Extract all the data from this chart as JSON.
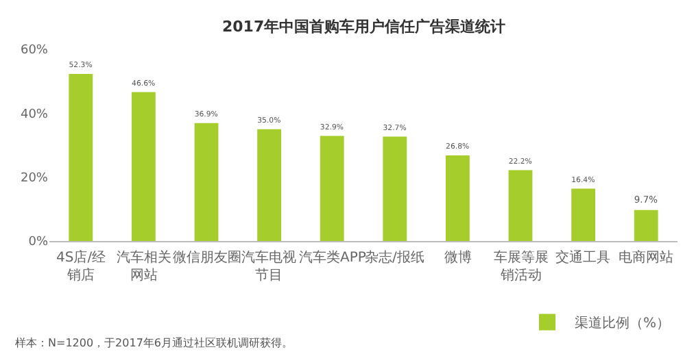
{
  "chart_data": {
    "type": "bar",
    "title": "2017年中国首购车用户信任广告渠道统计",
    "categories": [
      "4S店/经销店",
      "汽车相关网站",
      "微信朋友圈",
      "汽车电视节目",
      "汽车类APP",
      "杂志/报纸",
      "微博",
      "车展等展销活动",
      "交通工具",
      "电商网站"
    ],
    "series": [
      {
        "name": "渠道比例（%）",
        "color": "#a5cd2c",
        "values": [
          52.3,
          46.6,
          36.9,
          35.0,
          32.9,
          32.7,
          26.8,
          22.2,
          16.4,
          9.7
        ],
        "value_labels": [
          "52.3%",
          "46.6%",
          "36.9%",
          "35.0%",
          "32.9%",
          "32.7%",
          "26.8%",
          "22.2%",
          "16.4%",
          "9.7%"
        ]
      }
    ],
    "ylim": [
      0,
      60
    ],
    "yticks": [
      {
        "value": 0,
        "label": "0%"
      },
      {
        "value": 20,
        "label": "20%"
      },
      {
        "value": 40,
        "label": "40%"
      },
      {
        "value": 60,
        "label": "60%"
      }
    ],
    "grid": false,
    "legend": "bottom right",
    "annotations": [
      "样本：N=1200，于2017年6月通过社区联机调研获得。"
    ]
  }
}
